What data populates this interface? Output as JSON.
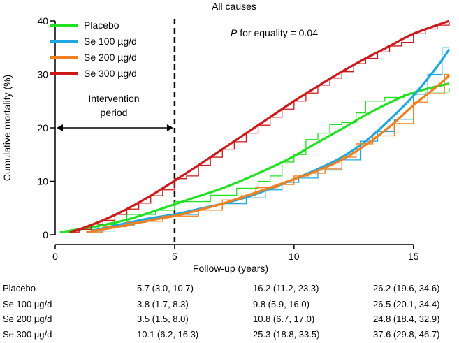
{
  "chart_data": {
    "type": "line",
    "title": "All causes",
    "annotation_p_italic": "P",
    "annotation_text": " for equality = 0.04",
    "intervention_label_line1": "Intervention",
    "intervention_label_line2": "period",
    "intervention_end_year": 5,
    "xlabel": "Follow-up (years)",
    "ylabel": "Cumulative mortality (%)",
    "xlim": [
      0,
      16.5
    ],
    "ylim": [
      0,
      40
    ],
    "x_ticks": [
      0,
      5,
      10,
      15
    ],
    "y_ticks": [
      0,
      10,
      20,
      30,
      40
    ],
    "legend_position": "top-left",
    "series": [
      {
        "name": "Placebo",
        "color": "#22e022",
        "smooth": [
          [
            0.2,
            0.5
          ],
          [
            1,
            1
          ],
          [
            2,
            1.8
          ],
          [
            3,
            2.8
          ],
          [
            4,
            4.2
          ],
          [
            5,
            5.7
          ],
          [
            6,
            7.2
          ],
          [
            7,
            8.7
          ],
          [
            8,
            10.5
          ],
          [
            9,
            12.5
          ],
          [
            10,
            14.7
          ],
          [
            11,
            17.3
          ],
          [
            12,
            19.8
          ],
          [
            13,
            22.4
          ],
          [
            14,
            24.7
          ],
          [
            15,
            26.6
          ],
          [
            16.5,
            28.3
          ]
        ],
        "steps": [
          [
            0.2,
            0.5
          ],
          [
            0.7,
            1.0
          ],
          [
            1.3,
            1.0
          ],
          [
            1.8,
            1.9
          ],
          [
            2.5,
            1.9
          ],
          [
            3.0,
            3.8
          ],
          [
            3.6,
            3.8
          ],
          [
            4.2,
            4.6
          ],
          [
            4.7,
            4.6
          ],
          [
            5.0,
            6.2
          ],
          [
            6.0,
            6.2
          ],
          [
            6.5,
            7.4
          ],
          [
            7.0,
            7.4
          ],
          [
            7.6,
            8.7
          ],
          [
            8.0,
            8.7
          ],
          [
            8.5,
            10.0
          ],
          [
            9.0,
            11.0
          ],
          [
            9.5,
            13.6
          ],
          [
            10.0,
            15.0
          ],
          [
            10.5,
            17.8
          ],
          [
            11.0,
            19.0
          ],
          [
            11.5,
            20.6
          ],
          [
            12.0,
            21.0
          ],
          [
            12.6,
            22.8
          ],
          [
            13.0,
            25.0
          ],
          [
            13.8,
            25.7
          ],
          [
            14.6,
            26.3
          ],
          [
            15.5,
            26.7
          ],
          [
            16.5,
            27.4
          ]
        ]
      },
      {
        "name": "Se 100 µg/d",
        "color": "#1ea7e0",
        "smooth": [
          [
            1.5,
            0.7
          ],
          [
            2,
            1.2
          ],
          [
            3,
            2.2
          ],
          [
            4,
            3.1
          ],
          [
            5,
            3.8
          ],
          [
            6,
            4.8
          ],
          [
            7,
            5.8
          ],
          [
            8,
            7.0
          ],
          [
            9,
            8.6
          ],
          [
            10,
            10.4
          ],
          [
            11,
            12.3
          ],
          [
            12,
            14.5
          ],
          [
            13,
            17.5
          ],
          [
            14,
            21.5
          ],
          [
            15,
            26.0
          ],
          [
            16,
            31.5
          ],
          [
            16.5,
            34.7
          ]
        ],
        "steps": [
          [
            1.5,
            0.7
          ],
          [
            2.0,
            0.7
          ],
          [
            2.5,
            1.8
          ],
          [
            3.3,
            2.5
          ],
          [
            4.0,
            3.0
          ],
          [
            4.5,
            3.4
          ],
          [
            5.0,
            3.8
          ],
          [
            6.0,
            4.6
          ],
          [
            7.0,
            5.8
          ],
          [
            8.0,
            6.9
          ],
          [
            8.8,
            8.4
          ],
          [
            9.5,
            9.8
          ],
          [
            10.2,
            10.6
          ],
          [
            11.0,
            12.1
          ],
          [
            12.0,
            14.0
          ],
          [
            12.8,
            17.5
          ],
          [
            13.5,
            19.3
          ],
          [
            14.2,
            21.6
          ],
          [
            15.0,
            26.3
          ],
          [
            15.6,
            30.0
          ],
          [
            16.2,
            35.0
          ],
          [
            16.5,
            35.0
          ]
        ]
      },
      {
        "name": "Se 200 µg/d",
        "color": "#ee8020",
        "smooth": [
          [
            1.3,
            0.5
          ],
          [
            2,
            1.0
          ],
          [
            3,
            1.8
          ],
          [
            4,
            2.7
          ],
          [
            5,
            3.5
          ],
          [
            6,
            4.6
          ],
          [
            7,
            5.8
          ],
          [
            8,
            7.3
          ],
          [
            9,
            8.8
          ],
          [
            10,
            10.4
          ],
          [
            11,
            12.0
          ],
          [
            12,
            14.0
          ],
          [
            13,
            16.8
          ],
          [
            14,
            20.2
          ],
          [
            15,
            24.2
          ],
          [
            16,
            27.8
          ],
          [
            16.5,
            29.8
          ]
        ],
        "steps": [
          [
            1.3,
            0.5
          ],
          [
            2.0,
            1.5
          ],
          [
            2.5,
            1.5
          ],
          [
            3.0,
            2.3
          ],
          [
            3.8,
            2.5
          ],
          [
            4.5,
            3.5
          ],
          [
            5.0,
            3.5
          ],
          [
            6.0,
            4.6
          ],
          [
            7.0,
            6.5
          ],
          [
            7.8,
            7.3
          ],
          [
            8.4,
            8.8
          ],
          [
            9.3,
            9.4
          ],
          [
            10.0,
            11.0
          ],
          [
            10.6,
            11.5
          ],
          [
            11.3,
            12.3
          ],
          [
            12.0,
            14.5
          ],
          [
            12.6,
            17.0
          ],
          [
            13.3,
            18.5
          ],
          [
            14.2,
            20.8
          ],
          [
            15.0,
            24.8
          ],
          [
            15.6,
            26.4
          ],
          [
            16.3,
            30.0
          ],
          [
            16.5,
            30.0
          ]
        ]
      },
      {
        "name": "Se 300 µg/d",
        "color": "#cc1a1a",
        "smooth": [
          [
            0.6,
            0.5
          ],
          [
            1,
            1.0
          ],
          [
            2,
            2.7
          ],
          [
            3,
            4.8
          ],
          [
            4,
            7.3
          ],
          [
            5,
            10.1
          ],
          [
            6,
            13.0
          ],
          [
            7,
            16.0
          ],
          [
            8,
            19.0
          ],
          [
            9,
            22.0
          ],
          [
            10,
            25.0
          ],
          [
            11,
            27.8
          ],
          [
            12,
            30.5
          ],
          [
            13,
            33.0
          ],
          [
            14,
            35.3
          ],
          [
            15,
            37.6
          ],
          [
            16.5,
            40.0
          ]
        ],
        "steps": [
          [
            0.6,
            0.5
          ],
          [
            1.0,
            1.0
          ],
          [
            1.5,
            2.0
          ],
          [
            2.0,
            2.7
          ],
          [
            2.5,
            3.8
          ],
          [
            3.0,
            4.8
          ],
          [
            3.5,
            5.9
          ],
          [
            4.0,
            7.3
          ],
          [
            4.5,
            8.4
          ],
          [
            5.0,
            10.5
          ],
          [
            5.5,
            11.0
          ],
          [
            6.0,
            13.0
          ],
          [
            6.5,
            14.5
          ],
          [
            7.0,
            16.0
          ],
          [
            7.5,
            17.4
          ],
          [
            8.0,
            19.0
          ],
          [
            8.5,
            20.5
          ],
          [
            9.0,
            22.0
          ],
          [
            9.5,
            23.5
          ],
          [
            10.0,
            25.0
          ],
          [
            10.5,
            26.5
          ],
          [
            11.0,
            28.0
          ],
          [
            11.5,
            29.3
          ],
          [
            12.0,
            30.5
          ],
          [
            12.5,
            32.0
          ],
          [
            13.0,
            33.0
          ],
          [
            13.5,
            34.2
          ],
          [
            14.0,
            35.3
          ],
          [
            14.5,
            36.0
          ],
          [
            15.0,
            37.6
          ],
          [
            15.5,
            38.5
          ],
          [
            16.0,
            39.2
          ],
          [
            16.5,
            39.8
          ]
        ]
      }
    ]
  },
  "table": {
    "rows": [
      {
        "label": "Placebo",
        "values": [
          "5.7 (3.0, 10.7)",
          "16.2 (11.2, 23.3)",
          "26.2 (19.6, 34.6)"
        ]
      },
      {
        "label": "Se 100 µg/d",
        "values": [
          "3.8 (1.7, 8.3)",
          "9.8 (5.9, 16.0)",
          "26.5 (20.1, 34.4)"
        ]
      },
      {
        "label": "Se 200 µg/d",
        "values": [
          "3.5 (1.5, 8.0)",
          "10.8 (6.7, 17.0)",
          "24.8 (18.4, 32.9)"
        ]
      },
      {
        "label": "Se 300 µg/d",
        "values": [
          "10.1 (6.2, 16.3)",
          "25.3 (18.8, 33.5)",
          "37.6 (29.8, 46.7)"
        ]
      }
    ]
  }
}
